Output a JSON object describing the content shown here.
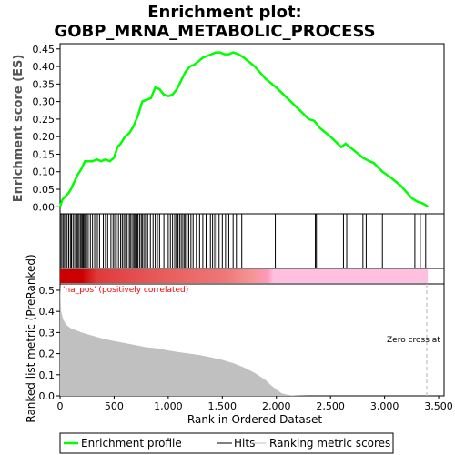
{
  "chart_data": {
    "type": "line",
    "title_line1": "Enrichment plot:",
    "title_line2": "GOBP_MRNA_METABOLIC_PROCESS",
    "xlabel": "Rank in Ordered Dataset",
    "ylabel_es": "Enrichment score (ES)",
    "ylabel_metric": "Ranked list metric (PreRanked)",
    "xlim": [
      0,
      3550
    ],
    "es_ylim": [
      -0.02,
      0.465
    ],
    "metric_ylim": [
      0,
      0.53
    ],
    "x_ticks": [
      0,
      500,
      1000,
      1500,
      2000,
      2500,
      3000,
      3500
    ],
    "x_tick_labels": [
      "0",
      "500",
      "1,000",
      "1,500",
      "2,000",
      "2,500",
      "3,000",
      "3,500"
    ],
    "es_ticks": [
      0.0,
      0.05,
      0.1,
      0.15,
      0.2,
      0.25,
      0.3,
      0.35,
      0.4,
      0.45
    ],
    "es_tick_labels": [
      "0.00",
      "0.05",
      "0.10",
      "0.15",
      "0.20",
      "0.25",
      "0.30",
      "0.35",
      "0.40",
      "0.45"
    ],
    "metric_ticks": [
      0.0,
      0.1,
      0.2,
      0.3,
      0.4,
      0.5
    ],
    "metric_tick_labels": [
      "0.0",
      "0.1",
      "0.2",
      "0.3",
      "0.4",
      "0.5"
    ],
    "pos_label": "'na_pos' (positively correlated)",
    "zero_cross_label": "Zero cross at",
    "zero_cross_x": 3390,
    "n_ranks": 3400,
    "colors": {
      "es_line": "#00ff00",
      "hits": "#000000",
      "metric_fill": "#c0c0c0",
      "pos_text": "#ff0000",
      "heat_red": "#cc0000",
      "heat_pink": "#ffc0e0",
      "zero_line": "#c0c0c0"
    },
    "series": [
      {
        "name": "Enrichment profile",
        "x": [
          0,
          20,
          50,
          80,
          100,
          130,
          160,
          200,
          230,
          260,
          300,
          340,
          380,
          420,
          460,
          500,
          530,
          560,
          600,
          640,
          680,
          720,
          760,
          800,
          840,
          880,
          920,
          960,
          1000,
          1040,
          1080,
          1120,
          1160,
          1200,
          1240,
          1280,
          1320,
          1360,
          1400,
          1440,
          1480,
          1520,
          1560,
          1600,
          1650,
          1700,
          1800,
          1900,
          1980,
          2000,
          2100,
          2200,
          2300,
          2350,
          2400,
          2500,
          2600,
          2640,
          2700,
          2800,
          2860,
          2900,
          2980,
          3050,
          3150,
          3250,
          3300,
          3350,
          3380,
          3400
        ],
        "values": [
          0.0,
          0.02,
          0.03,
          0.04,
          0.05,
          0.07,
          0.09,
          0.11,
          0.13,
          0.13,
          0.13,
          0.135,
          0.13,
          0.135,
          0.13,
          0.14,
          0.17,
          0.18,
          0.2,
          0.21,
          0.23,
          0.26,
          0.3,
          0.305,
          0.31,
          0.34,
          0.335,
          0.32,
          0.315,
          0.32,
          0.335,
          0.36,
          0.385,
          0.4,
          0.405,
          0.415,
          0.425,
          0.43,
          0.435,
          0.44,
          0.44,
          0.435,
          0.435,
          0.44,
          0.435,
          0.425,
          0.4,
          0.365,
          0.345,
          0.34,
          0.31,
          0.28,
          0.25,
          0.245,
          0.225,
          0.2,
          0.17,
          0.18,
          0.165,
          0.14,
          0.13,
          0.125,
          0.1,
          0.085,
          0.06,
          0.025,
          0.015,
          0.01,
          0.005,
          0.0
        ]
      },
      {
        "name": "Hits",
        "x": [
          10,
          25,
          35,
          50,
          65,
          80,
          95,
          105,
          120,
          135,
          150,
          160,
          170,
          185,
          195,
          205,
          215,
          225,
          235,
          245,
          260,
          280,
          300,
          320,
          345,
          365,
          400,
          420,
          440,
          470,
          490,
          505,
          520,
          540,
          560,
          575,
          590,
          605,
          620,
          640,
          650,
          665,
          680,
          690,
          700,
          710,
          720,
          735,
          750,
          760,
          775,
          790,
          810,
          835,
          860,
          880,
          900,
          920,
          960,
          1000,
          1020,
          1040,
          1060,
          1075,
          1090,
          1105,
          1120,
          1135,
          1150,
          1160,
          1175,
          1190,
          1210,
          1230,
          1260,
          1290,
          1320,
          1350,
          1390,
          1410,
          1430,
          1450,
          1470,
          1500,
          1530,
          1560,
          1600,
          1630,
          1680,
          1990,
          2360,
          2370,
          2620,
          2650,
          2800,
          2830,
          2980,
          3280,
          3330,
          3380
        ]
      },
      {
        "name": "Ranking metric scores",
        "x": [
          0,
          10,
          30,
          60,
          100,
          200,
          300,
          400,
          500,
          600,
          700,
          800,
          900,
          1000,
          1100,
          1200,
          1300,
          1400,
          1500,
          1600,
          1700,
          1800,
          1900,
          1950,
          2000,
          2050,
          2100,
          2150,
          2200,
          2300,
          2400,
          3000,
          3400
        ],
        "values": [
          0.53,
          0.4,
          0.36,
          0.335,
          0.32,
          0.3,
          0.285,
          0.27,
          0.26,
          0.25,
          0.24,
          0.23,
          0.225,
          0.215,
          0.207,
          0.2,
          0.192,
          0.182,
          0.17,
          0.155,
          0.135,
          0.108,
          0.075,
          0.05,
          0.03,
          0.012,
          0.005,
          0.002,
          0.001,
          0.0,
          0.0,
          0.0,
          0.0
        ]
      }
    ],
    "legend": [
      "Enrichment profile",
      "Hits",
      "Ranking metric scores"
    ]
  }
}
